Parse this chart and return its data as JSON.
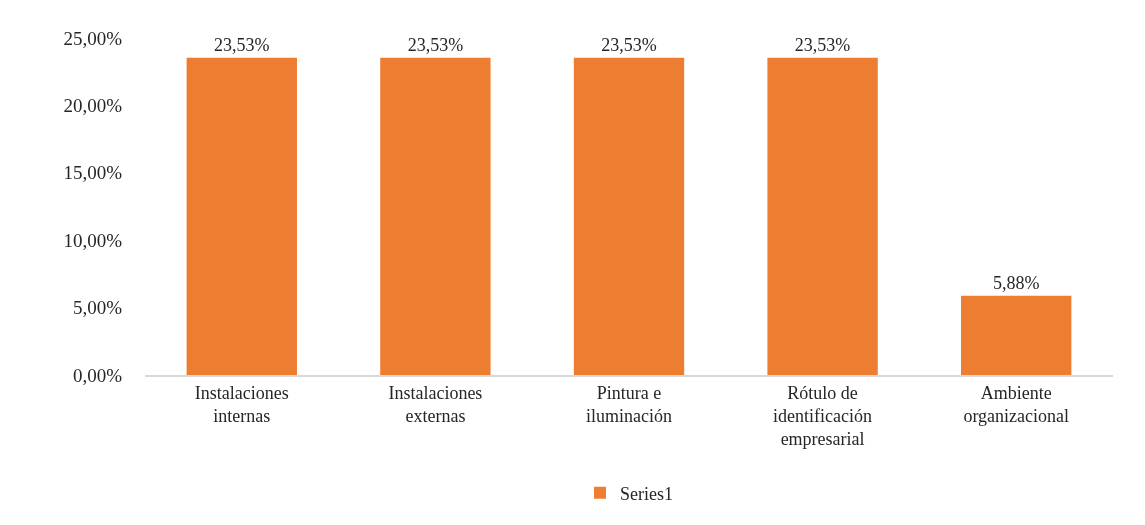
{
  "chart_data": {
    "type": "bar",
    "categories": [
      "Instalaciones\ninternas",
      "Instalaciones\nexternas",
      "Pintura e\niluminación",
      "Rótulo de\nidentificación\nempresarial",
      "Ambiente\norganizacional"
    ],
    "series": [
      {
        "name": "Series1",
        "color": "#ed7d31",
        "values": [
          23.53,
          23.53,
          23.53,
          23.53,
          5.88
        ],
        "value_labels": [
          "23,53%",
          "23,53%",
          "23,53%",
          "23,53%",
          "5,88%"
        ]
      }
    ],
    "ylim": [
      0,
      25
    ],
    "yticks": [
      {
        "value": 0,
        "label": "0,00%"
      },
      {
        "value": 5,
        "label": "5,00%"
      },
      {
        "value": 10,
        "label": "10,00%"
      },
      {
        "value": 15,
        "label": "15,00%"
      },
      {
        "value": 20,
        "label": "20,00%"
      },
      {
        "value": 25,
        "label": "25,00%"
      }
    ],
    "grid": false,
    "legend": "bottom"
  }
}
